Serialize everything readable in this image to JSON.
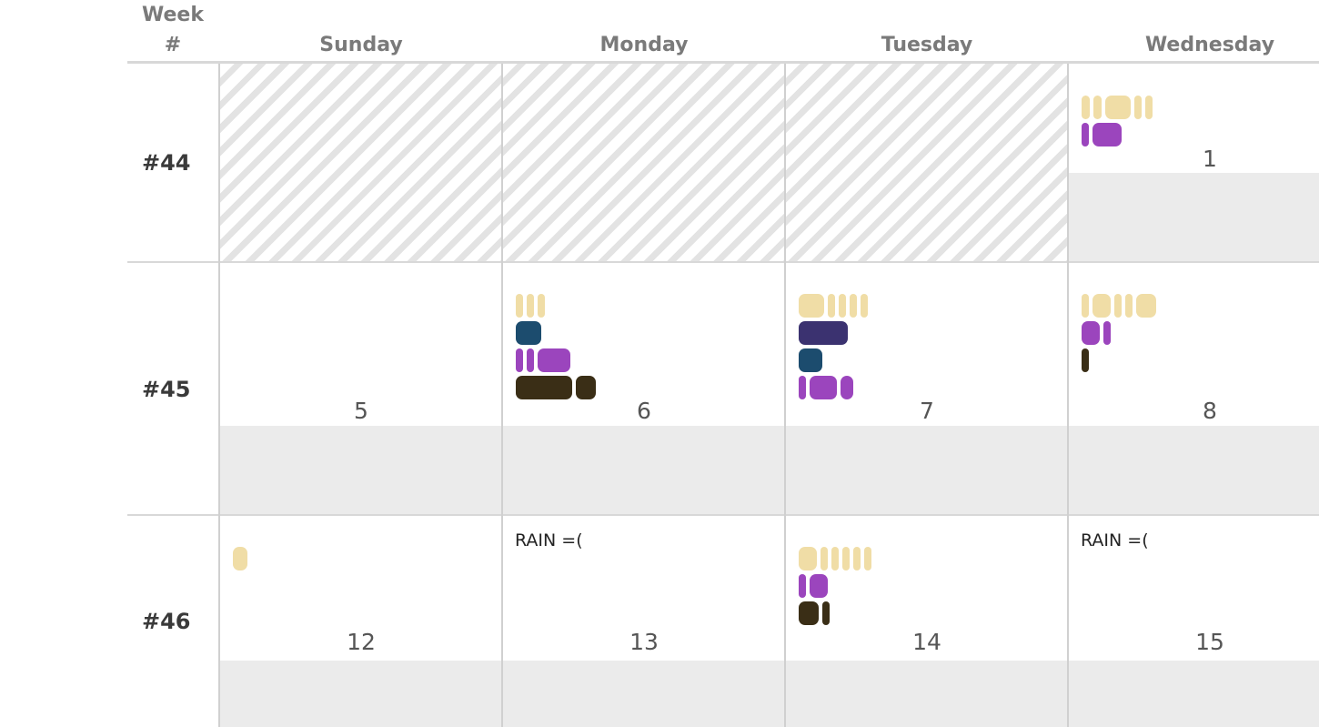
{
  "header": {
    "week_label_line1": "Week",
    "week_label_line2": "#",
    "days": [
      "Sunday",
      "Monday",
      "Tuesday",
      "Wednesday"
    ]
  },
  "colors": {
    "yellow": "#f0dda6",
    "purple": "#9b45bd",
    "teal": "#1c4c6e",
    "navy": "#3b3270",
    "brown": "#3a2e16"
  },
  "weeks": [
    {
      "label": "#44",
      "days": [
        {
          "empty": true
        },
        {
          "empty": true
        },
        {
          "empty": true
        },
        {
          "number": "1",
          "bars": [
            [
              [
                "yellow",
                9
              ],
              [
                "yellow",
                9
              ],
              [
                "yellow",
                28
              ],
              [
                "yellow",
                8
              ],
              [
                "yellow",
                8
              ]
            ],
            [
              [
                "purple",
                8
              ],
              [
                "purple",
                32
              ]
            ]
          ]
        }
      ]
    },
    {
      "label": "#45",
      "days": [
        {
          "number": "5",
          "bars": []
        },
        {
          "number": "6",
          "bars": [
            [
              [
                "yellow",
                8
              ],
              [
                "yellow",
                8
              ],
              [
                "yellow",
                8
              ]
            ],
            [
              [
                "teal",
                28
              ]
            ],
            [
              [
                "purple",
                8
              ],
              [
                "purple",
                8
              ],
              [
                "purple",
                36
              ]
            ],
            [
              [
                "brown",
                62
              ],
              [
                "brown",
                22
              ]
            ]
          ]
        },
        {
          "number": "7",
          "bars": [
            [
              [
                "yellow",
                28
              ],
              [
                "yellow",
                8
              ],
              [
                "yellow",
                8
              ],
              [
                "yellow",
                8
              ],
              [
                "yellow",
                8
              ]
            ],
            [
              [
                "navy",
                54
              ]
            ],
            [
              [
                "teal",
                26
              ]
            ],
            [
              [
                "purple",
                8
              ],
              [
                "purple",
                30
              ],
              [
                "purple",
                14
              ]
            ]
          ]
        },
        {
          "number": "8",
          "bars": [
            [
              [
                "yellow",
                8
              ],
              [
                "yellow",
                20
              ],
              [
                "yellow",
                8
              ],
              [
                "yellow",
                8
              ],
              [
                "yellow",
                22
              ]
            ],
            [
              [
                "purple",
                20
              ],
              [
                "purple",
                8
              ]
            ],
            [
              [
                "brown",
                8
              ]
            ]
          ]
        }
      ]
    },
    {
      "label": "#46",
      "days": [
        {
          "number": "12",
          "bars": [
            [
              [
                "yellow",
                16
              ]
            ]
          ]
        },
        {
          "number": "13",
          "note": "RAIN =(",
          "bars": []
        },
        {
          "number": "14",
          "bars": [
            [
              [
                "yellow",
                20
              ],
              [
                "yellow",
                8
              ],
              [
                "yellow",
                8
              ],
              [
                "yellow",
                8
              ],
              [
                "yellow",
                8
              ],
              [
                "yellow",
                8
              ]
            ],
            [
              [
                "purple",
                8
              ],
              [
                "purple",
                20
              ]
            ],
            [
              [
                "brown",
                22
              ],
              [
                "brown",
                8
              ]
            ]
          ]
        },
        {
          "number": "15",
          "note": "RAIN =(",
          "bars": []
        }
      ]
    }
  ]
}
